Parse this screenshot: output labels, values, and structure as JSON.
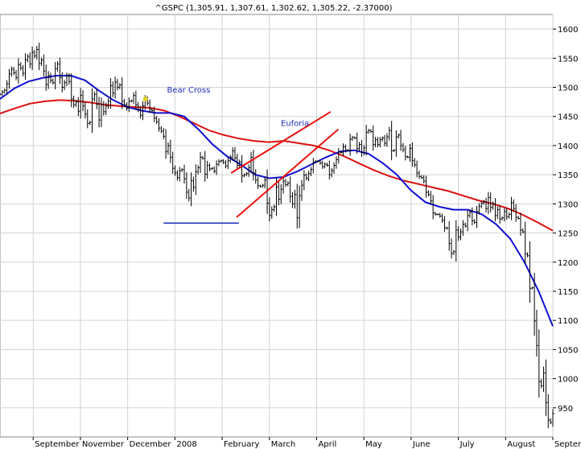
{
  "chart_data": {
    "type": "ohlc",
    "title": "^GSPC (1,305.91, 1,307.61, 1,302.62, 1,305.22, -2.37000)",
    "ylim": [
      900,
      1625
    ],
    "y_ticks": [
      950,
      1000,
      1050,
      1100,
      1150,
      1200,
      1250,
      1300,
      1350,
      1400,
      1450,
      1500,
      1550,
      1600
    ],
    "x_labels": [
      "September",
      "November",
      "December",
      "2008",
      "February",
      "March",
      "April",
      "May",
      "June",
      "July",
      "August",
      "September"
    ],
    "grid": true,
    "colors": {
      "price": "#000000",
      "ma_short": "#1010d0",
      "ma_long": "#dd1010",
      "trend_lines": "#ee1111",
      "support_line": "#1a2bbf",
      "grid": "#d3d3d3",
      "marker": "#e0d020"
    },
    "price_series": [
      1488,
      1492,
      1495,
      1506,
      1523,
      1531,
      1525,
      1517,
      1539,
      1533,
      1524,
      1547,
      1553,
      1540,
      1560,
      1554,
      1565,
      1541,
      1547,
      1528,
      1505,
      1520,
      1512,
      1508,
      1532,
      1540,
      1517,
      1500,
      1508,
      1519,
      1510,
      1480,
      1470,
      1475,
      1459,
      1486,
      1468,
      1454,
      1438,
      1440,
      1480,
      1488,
      1471,
      1444,
      1470,
      1458,
      1468,
      1476,
      1503,
      1490,
      1509,
      1500,
      1504,
      1476,
      1470,
      1464,
      1476,
      1477,
      1486,
      1470,
      1462,
      1452,
      1468,
      1480,
      1473,
      1462,
      1460,
      1447,
      1441,
      1430,
      1425,
      1416,
      1390,
      1400,
      1380,
      1361,
      1353,
      1345,
      1357,
      1359,
      1343,
      1320,
      1310,
      1340,
      1328,
      1355,
      1362,
      1380,
      1378,
      1351,
      1366,
      1360,
      1361,
      1356,
      1368,
      1373,
      1374,
      1371,
      1365,
      1374,
      1380,
      1391,
      1379,
      1366,
      1372,
      1348,
      1350,
      1352,
      1362,
      1380,
      1353,
      1341,
      1331,
      1330,
      1332,
      1341,
      1301,
      1280,
      1290,
      1295,
      1329,
      1308,
      1325,
      1339,
      1333,
      1336,
      1313,
      1300,
      1316,
      1276,
      1314,
      1332,
      1349,
      1344,
      1352,
      1359,
      1372,
      1373,
      1373,
      1370,
      1364,
      1368,
      1366,
      1350,
      1357,
      1366,
      1376,
      1389,
      1388,
      1398,
      1392,
      1392,
      1411,
      1414,
      1413,
      1395,
      1402,
      1388,
      1396,
      1423,
      1426,
      1424,
      1402,
      1410,
      1402,
      1410,
      1413,
      1404,
      1415,
      1426,
      1391,
      1392,
      1415,
      1418,
      1400,
      1393,
      1381,
      1380,
      1395,
      1374,
      1367,
      1353,
      1347,
      1345,
      1339,
      1320,
      1316,
      1305,
      1284,
      1282,
      1282,
      1279,
      1272,
      1259,
      1258,
      1232,
      1215,
      1218,
      1255,
      1243,
      1252,
      1265,
      1262,
      1280,
      1286,
      1271,
      1268,
      1287,
      1296,
      1301,
      1304,
      1292,
      1311,
      1294,
      1300,
      1280,
      1290,
      1274,
      1276,
      1287,
      1278,
      1282,
      1302,
      1292,
      1277,
      1275,
      1255,
      1252,
      1214,
      1211,
      1155,
      1156,
      1099,
      1057,
      995,
      988,
      1010,
      959,
      929,
      925,
      940
    ],
    "ma_short_series": [
      1480,
      1498,
      1510,
      1516,
      1520,
      1520,
      1512,
      1494,
      1478,
      1466,
      1460,
      1456,
      1456,
      1450,
      1428,
      1402,
      1382,
      1367,
      1350,
      1344,
      1346,
      1356,
      1368,
      1380,
      1390,
      1392,
      1386,
      1370,
      1350,
      1323,
      1303,
      1295,
      1290,
      1290,
      1282,
      1265,
      1240,
      1200,
      1150,
      1090
    ],
    "ma_long_series": [
      1455,
      1464,
      1472,
      1476,
      1478,
      1477,
      1474,
      1470,
      1468,
      1466,
      1465,
      1460,
      1450,
      1438,
      1426,
      1418,
      1412,
      1408,
      1406,
      1408,
      1404,
      1400,
      1392,
      1382,
      1370,
      1358,
      1348,
      1340,
      1334,
      1328,
      1322,
      1314,
      1306,
      1300,
      1292,
      1281,
      1268,
      1254
    ],
    "trend_lines": [
      {
        "name": "upper-channel",
        "x1": 0.418,
        "y1": 1353,
        "x2": 0.598,
        "y2": 1458
      },
      {
        "name": "lower-channel",
        "x1": 0.428,
        "y1": 1277,
        "x2": 0.612,
        "y2": 1428
      }
    ],
    "support_line": {
      "x1": 0.296,
      "x2": 0.432,
      "y": 1267
    },
    "annotations": [
      {
        "text": "Bear Cross",
        "x": 0.302,
        "y": 1491
      },
      {
        "text": "Euforia",
        "x": 0.508,
        "y": 1434
      }
    ],
    "marker": {
      "x": 0.263,
      "y": 1480
    }
  }
}
